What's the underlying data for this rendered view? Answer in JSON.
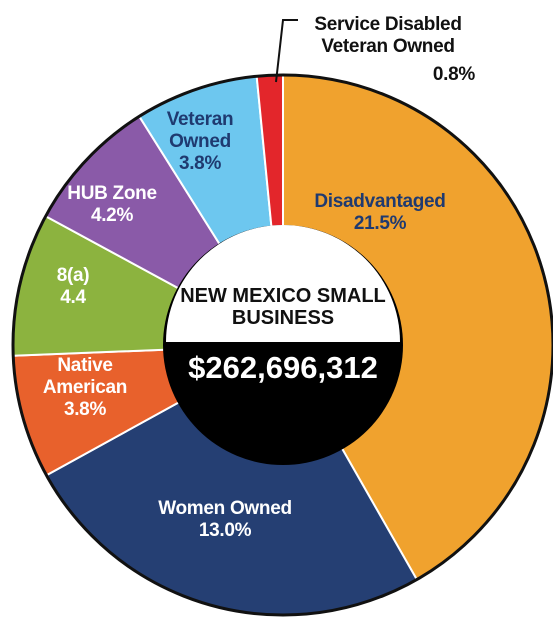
{
  "chart_data": {
    "type": "donut",
    "categories": [
      "Disadvantaged",
      "Women Owned",
      "Native American",
      "8(a)",
      "HUB Zone",
      "Veteran Owned",
      "Service Disabled Veteran Owned"
    ],
    "values": [
      21.5,
      13.0,
      3.8,
      4.4,
      4.2,
      3.8,
      0.8
    ],
    "value_labels": [
      "21.5%",
      "13.0%",
      "3.8%",
      "4.4",
      "4.2%",
      "3.8%",
      "0.8%"
    ],
    "colors": [
      "#f0a22e",
      "#253f73",
      "#e8612c",
      "#8cb33f",
      "#8a5aa8",
      "#6dc7ef",
      "#e3262b"
    ],
    "center_title": "NEW MEXICO SMALL BUSINESS",
    "center_value": "$262,696,312"
  }
}
